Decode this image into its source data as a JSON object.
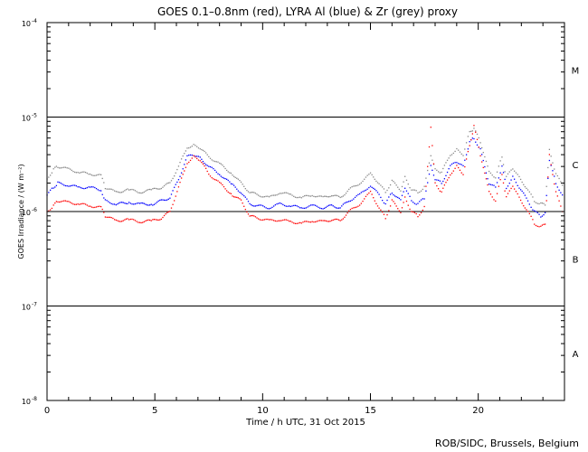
{
  "chart_data": {
    "type": "scatter",
    "title": "GOES 0.1–0.8nm (red), LYRA Al (blue) & Zr (grey) proxy",
    "xlabel": "Time / h UTC, 31 Oct 2015",
    "ylabel": "GOES Irradiance / (W m⁻²)",
    "xlim": [
      0,
      24
    ],
    "ylim": [
      1e-08,
      0.0001
    ],
    "yscale": "log",
    "xticks": [
      0,
      5,
      10,
      15,
      20
    ],
    "xtick_labels": [
      "0",
      "5",
      "10",
      "15",
      "20"
    ],
    "yticks": [
      1e-08,
      1e-07,
      1e-06,
      1e-05,
      0.0001
    ],
    "ytick_labels": [
      {
        "base": "10",
        "exp": "-8"
      },
      {
        "base": "10",
        "exp": "-7"
      },
      {
        "base": "10",
        "exp": "-6"
      },
      {
        "base": "10",
        "exp": "-5"
      },
      {
        "base": "10",
        "exp": "-4"
      }
    ],
    "flare_class_lines": [
      1e-07,
      1e-06,
      1e-05
    ],
    "flare_classes": [
      {
        "label": "A",
        "value": 3.16e-08
      },
      {
        "label": "B",
        "value": 3.16e-07
      },
      {
        "label": "C",
        "value": 3.16e-06
      },
      {
        "label": "M",
        "value": 3.16e-05
      }
    ],
    "credit": "ROB/SIDC, Brussels, Belgium",
    "series": [
      {
        "name": "GOES 0.1-0.8nm",
        "color": "#ff0000",
        "x": [
          0,
          0.3,
          0.5,
          1.0,
          1.5,
          2.0,
          2.5,
          2.7,
          3.2,
          3.8,
          4.3,
          4.9,
          5.3,
          5.7,
          6.1,
          6.5,
          6.8,
          7.1,
          7.5,
          8.0,
          8.6,
          9.0,
          9.4,
          9.8,
          10.3,
          10.8,
          11.3,
          11.8,
          12.3,
          12.8,
          13.2,
          13.6,
          14.0,
          14.5,
          15.0,
          15.4,
          15.7,
          16.0,
          16.4,
          16.6,
          16.9,
          17.2,
          17.5,
          17.8,
          18.0,
          18.3,
          18.7,
          19.0,
          19.3,
          19.6,
          19.8,
          20.1,
          20.5,
          20.8,
          21.1,
          21.3,
          21.6,
          21.9,
          22.3,
          22.6,
          22.9,
          23.1,
          23.3,
          23.6,
          23.9
        ],
        "values": [
          1e-06,
          1.15e-06,
          1.3e-06,
          1.25e-06,
          1.2e-06,
          1.15e-06,
          1.1e-06,
          9e-07,
          8e-07,
          8.2e-07,
          7.8e-07,
          8e-07,
          8.5e-07,
          1e-06,
          1.8e-06,
          3.3e-06,
          3.8e-06,
          3.5e-06,
          2.5e-06,
          2e-06,
          1.5e-06,
          1.3e-06,
          9e-07,
          8.5e-07,
          8e-07,
          8.2e-07,
          7.8e-07,
          7.5e-07,
          8e-07,
          7.8e-07,
          8.2e-07,
          8e-07,
          1e-06,
          1.2e-06,
          1.6e-06,
          1.1e-06,
          8.5e-07,
          1.3e-06,
          1e-06,
          1.4e-06,
          1e-06,
          9e-07,
          1.1e-06,
          8e-06,
          2e-06,
          1.6e-06,
          2.5e-06,
          3e-06,
          2.5e-06,
          5e-06,
          8e-06,
          4e-06,
          1.6e-06,
          1.3e-06,
          2.5e-06,
          1.4e-06,
          1.9e-06,
          1.4e-06,
          1e-06,
          7.5e-07,
          6.8e-07,
          7.5e-07,
          4e-06,
          1.6e-06,
          1e-06
        ]
      },
      {
        "name": "LYRA Al proxy",
        "color": "#0000ff",
        "x": [
          0,
          0.3,
          0.5,
          1.0,
          1.5,
          2.0,
          2.5,
          2.7,
          3.2,
          3.8,
          4.3,
          4.9,
          5.3,
          5.7,
          6.1,
          6.5,
          6.8,
          7.1,
          7.5,
          8.0,
          8.6,
          9.0,
          9.4,
          9.8,
          10.3,
          10.8,
          11.3,
          11.8,
          12.3,
          12.8,
          13.2,
          13.6,
          14.0,
          14.5,
          15.0,
          15.4,
          15.7,
          16.0,
          16.4,
          16.6,
          16.9,
          17.2,
          17.5,
          17.8,
          18.0,
          18.3,
          18.7,
          19.0,
          19.3,
          19.6,
          19.8,
          20.1,
          20.5,
          20.8,
          21.1,
          21.3,
          21.6,
          21.9,
          22.3,
          22.6,
          22.9,
          23.1,
          23.3,
          23.6,
          23.9
        ],
        "values": [
          1.5e-06,
          1.8e-06,
          2e-06,
          1.9e-06,
          1.8e-06,
          1.8e-06,
          1.7e-06,
          1.3e-06,
          1.2e-06,
          1.25e-06,
          1.2e-06,
          1.2e-06,
          1.3e-06,
          1.4e-06,
          2.2e-06,
          3.8e-06,
          4e-06,
          3.7e-06,
          3e-06,
          2.5e-06,
          1.9e-06,
          1.6e-06,
          1.2e-06,
          1.15e-06,
          1.1e-06,
          1.2e-06,
          1.15e-06,
          1.1e-06,
          1.15e-06,
          1.1e-06,
          1.15e-06,
          1.1e-06,
          1.3e-06,
          1.5e-06,
          1.9e-06,
          1.5e-06,
          1.2e-06,
          1.6e-06,
          1.3e-06,
          1.8e-06,
          1.3e-06,
          1.2e-06,
          1.4e-06,
          3e-06,
          2.2e-06,
          2e-06,
          3e-06,
          3.4e-06,
          3e-06,
          5.5e-06,
          6e-06,
          4.5e-06,
          2e-06,
          1.8e-06,
          3e-06,
          1.8e-06,
          2.3e-06,
          1.8e-06,
          1.3e-06,
          1e-06,
          9e-07,
          9.5e-07,
          3.5e-06,
          2e-06,
          1.5e-06
        ]
      },
      {
        "name": "LYRA Zr proxy",
        "color": "#888888",
        "x": [
          0,
          0.3,
          0.5,
          1.0,
          1.5,
          2.0,
          2.5,
          2.7,
          3.2,
          3.8,
          4.3,
          4.9,
          5.3,
          5.7,
          6.1,
          6.5,
          6.8,
          7.1,
          7.5,
          8.0,
          8.6,
          9.0,
          9.4,
          9.8,
          10.3,
          10.8,
          11.3,
          11.8,
          12.3,
          12.8,
          13.2,
          13.6,
          14.0,
          14.5,
          15.0,
          15.4,
          15.7,
          16.0,
          16.4,
          16.6,
          16.9,
          17.2,
          17.5,
          17.8,
          18.0,
          18.3,
          18.7,
          19.0,
          19.3,
          19.6,
          19.8,
          20.1,
          20.5,
          20.8,
          21.1,
          21.3,
          21.6,
          21.9,
          22.3,
          22.6,
          22.9,
          23.1,
          23.3,
          23.6,
          23.9
        ],
        "values": [
          2.2e-06,
          2.8e-06,
          3e-06,
          2.8e-06,
          2.6e-06,
          2.5e-06,
          2.4e-06,
          1.8e-06,
          1.6e-06,
          1.7e-06,
          1.6e-06,
          1.7e-06,
          1.8e-06,
          2e-06,
          3e-06,
          4.8e-06,
          5e-06,
          4.7e-06,
          3.8e-06,
          3.2e-06,
          2.5e-06,
          2e-06,
          1.6e-06,
          1.5e-06,
          1.4e-06,
          1.6e-06,
          1.5e-06,
          1.4e-06,
          1.5e-06,
          1.4e-06,
          1.5e-06,
          1.4e-06,
          1.7e-06,
          2e-06,
          2.5e-06,
          2e-06,
          1.6e-06,
          2.1e-06,
          1.7e-06,
          2.3e-06,
          1.7e-06,
          1.6e-06,
          1.8e-06,
          4e-06,
          2.8e-06,
          2.6e-06,
          4e-06,
          4.5e-06,
          4e-06,
          7e-06,
          7.5e-06,
          5.5e-06,
          2.6e-06,
          2.3e-06,
          3.8e-06,
          2.3e-06,
          2.9e-06,
          2.3e-06,
          1.7e-06,
          1.3e-06,
          1.2e-06,
          1.2e-06,
          4.5e-06,
          2.5e-06,
          1.9e-06
        ]
      }
    ]
  }
}
